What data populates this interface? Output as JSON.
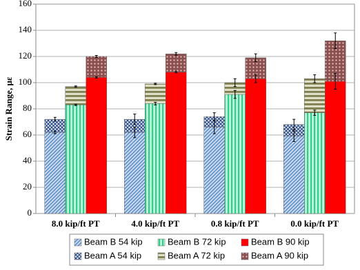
{
  "chart_data": {
    "type": "bar",
    "y_label": "Strain Range, με",
    "categories": [
      "8.0 kip/ft PT",
      "4.0 kip/ft PT",
      "0.8 kip/ft PT",
      "0.0 kip/ft PT"
    ],
    "ylim": [
      0,
      160
    ],
    "yticks": [
      0,
      20,
      40,
      60,
      80,
      100,
      120,
      140,
      160
    ],
    "grid": true,
    "series": [
      {
        "name": "Beam B 54 kip",
        "color": "#4f81bd",
        "values": [
          62,
          62,
          66,
          59
        ],
        "errors": [
          1,
          4,
          5,
          4
        ],
        "group": 0
      },
      {
        "name": "Beam B 72 kip",
        "color": "#33cc8a",
        "values": [
          83,
          84,
          91,
          77
        ],
        "errors": [
          0.5,
          1,
          3,
          2
        ],
        "group": 1
      },
      {
        "name": "Beam B 90 kip",
        "color": "#ff0000",
        "values": [
          104,
          108,
          103,
          101
        ],
        "errors": [
          0.5,
          0.5,
          3,
          6
        ],
        "group": 2
      },
      {
        "name": "Beam A 54 kip",
        "color": "#1f3d7a",
        "values": [
          72,
          72,
          74,
          68
        ],
        "errors": [
          1.5,
          4,
          3,
          4
        ],
        "group": 0
      },
      {
        "name": "Beam A 72 kip",
        "color": "#7f7f50",
        "values": [
          97,
          99,
          100,
          103
        ],
        "errors": [
          0.5,
          0.5,
          3,
          3
        ],
        "group": 1
      },
      {
        "name": "Beam A 90 kip",
        "color": "#8b5050",
        "values": [
          120,
          122,
          119,
          132
        ],
        "errors": [
          0.8,
          1,
          3,
          6
        ],
        "group": 2
      }
    ]
  }
}
